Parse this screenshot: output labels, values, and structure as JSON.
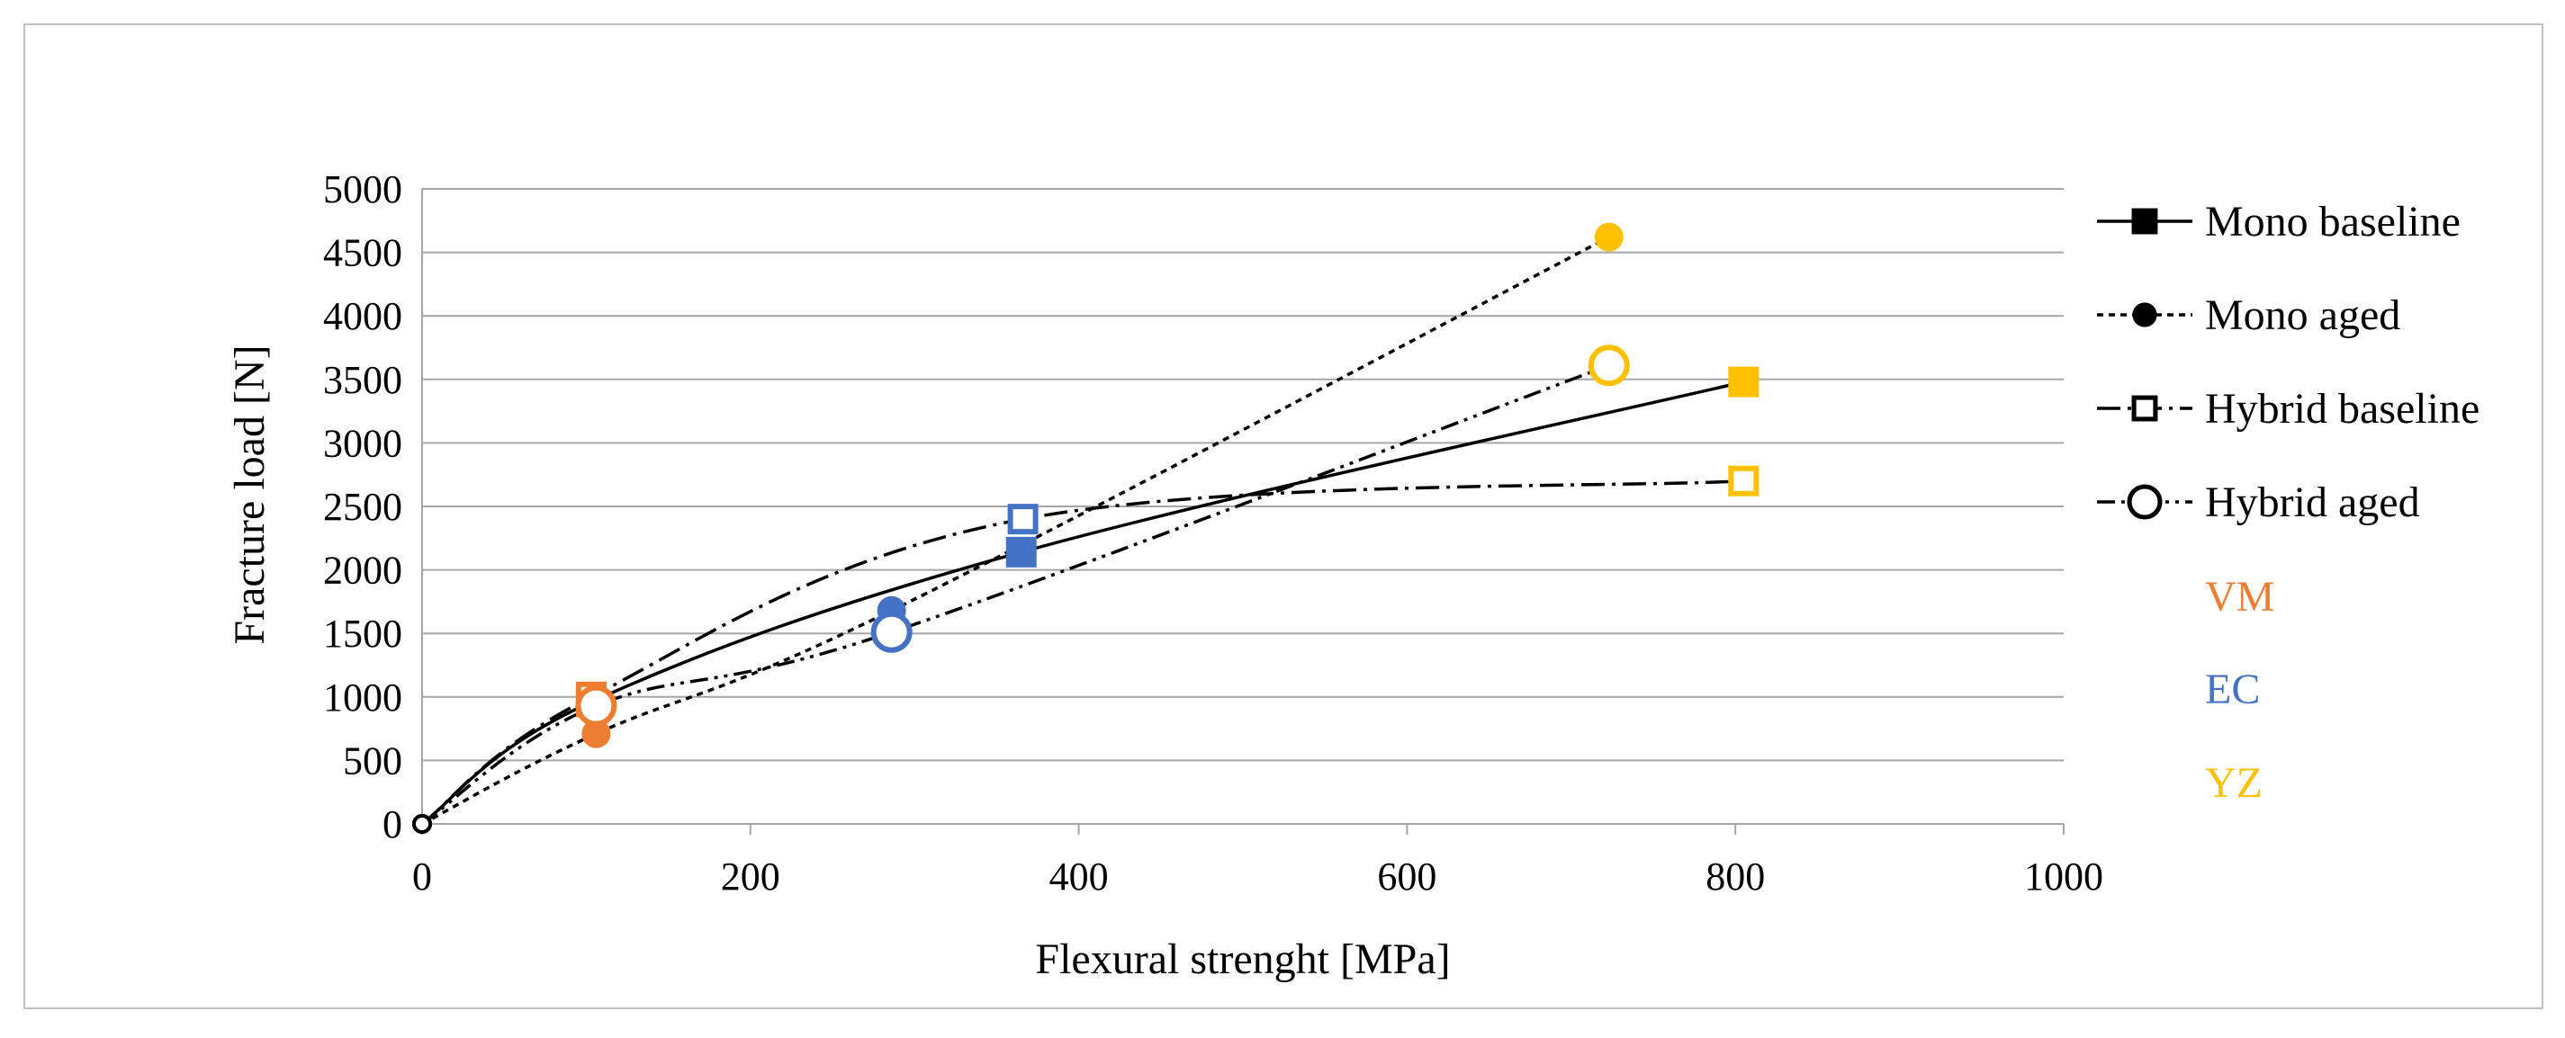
{
  "chart_data": {
    "type": "scatter",
    "title": "",
    "xlabel": "Flexural strenght [MPa]",
    "ylabel": "Fracture load [N]",
    "xlim": [
      0,
      1000
    ],
    "ylim": [
      0,
      5000
    ],
    "xticks": [
      0,
      200,
      400,
      600,
      800,
      1000
    ],
    "yticks": [
      0,
      500,
      1000,
      1500,
      2000,
      2500,
      3000,
      3500,
      4000,
      4500,
      5000
    ],
    "grid": "horizontal",
    "legend_position": "right",
    "series": [
      {
        "name": "Mono baseline",
        "marker": "filled-square",
        "line_style": "solid",
        "points": [
          {
            "x": 0,
            "y": 0,
            "material": "origin"
          },
          {
            "x": 103,
            "y": 960,
            "material": "VM"
          },
          {
            "x": 365,
            "y": 2140,
            "material": "EC"
          },
          {
            "x": 805,
            "y": 3480,
            "material": "YZ"
          }
        ]
      },
      {
        "name": "Mono aged",
        "marker": "filled-circle",
        "line_style": "dotted",
        "points": [
          {
            "x": 0,
            "y": 0,
            "material": "origin"
          },
          {
            "x": 106,
            "y": 710,
            "material": "VM"
          },
          {
            "x": 286,
            "y": 1680,
            "material": "EC"
          },
          {
            "x": 723,
            "y": 4620,
            "material": "YZ"
          }
        ]
      },
      {
        "name": "Hybrid baseline",
        "marker": "open-square",
        "line_style": "dash-dot",
        "points": [
          {
            "x": 0,
            "y": 0,
            "material": "origin"
          },
          {
            "x": 103,
            "y": 1000,
            "material": "VM"
          },
          {
            "x": 366,
            "y": 2400,
            "material": "EC"
          },
          {
            "x": 805,
            "y": 2700,
            "material": "YZ"
          }
        ]
      },
      {
        "name": "Hybrid aged",
        "marker": "open-circle",
        "line_style": "dash-dot-dot",
        "points": [
          {
            "x": 0,
            "y": 0,
            "material": "origin"
          },
          {
            "x": 106,
            "y": 930,
            "material": "VM"
          },
          {
            "x": 286,
            "y": 1510,
            "material": "EC"
          },
          {
            "x": 723,
            "y": 3610,
            "material": "YZ"
          }
        ]
      }
    ],
    "materials": [
      {
        "label": "VM",
        "color": "#ED7D31"
      },
      {
        "label": "EC",
        "color": "#4472C4"
      },
      {
        "label": "YZ",
        "color": "#FFC000"
      }
    ],
    "origin_color": "#000000"
  }
}
